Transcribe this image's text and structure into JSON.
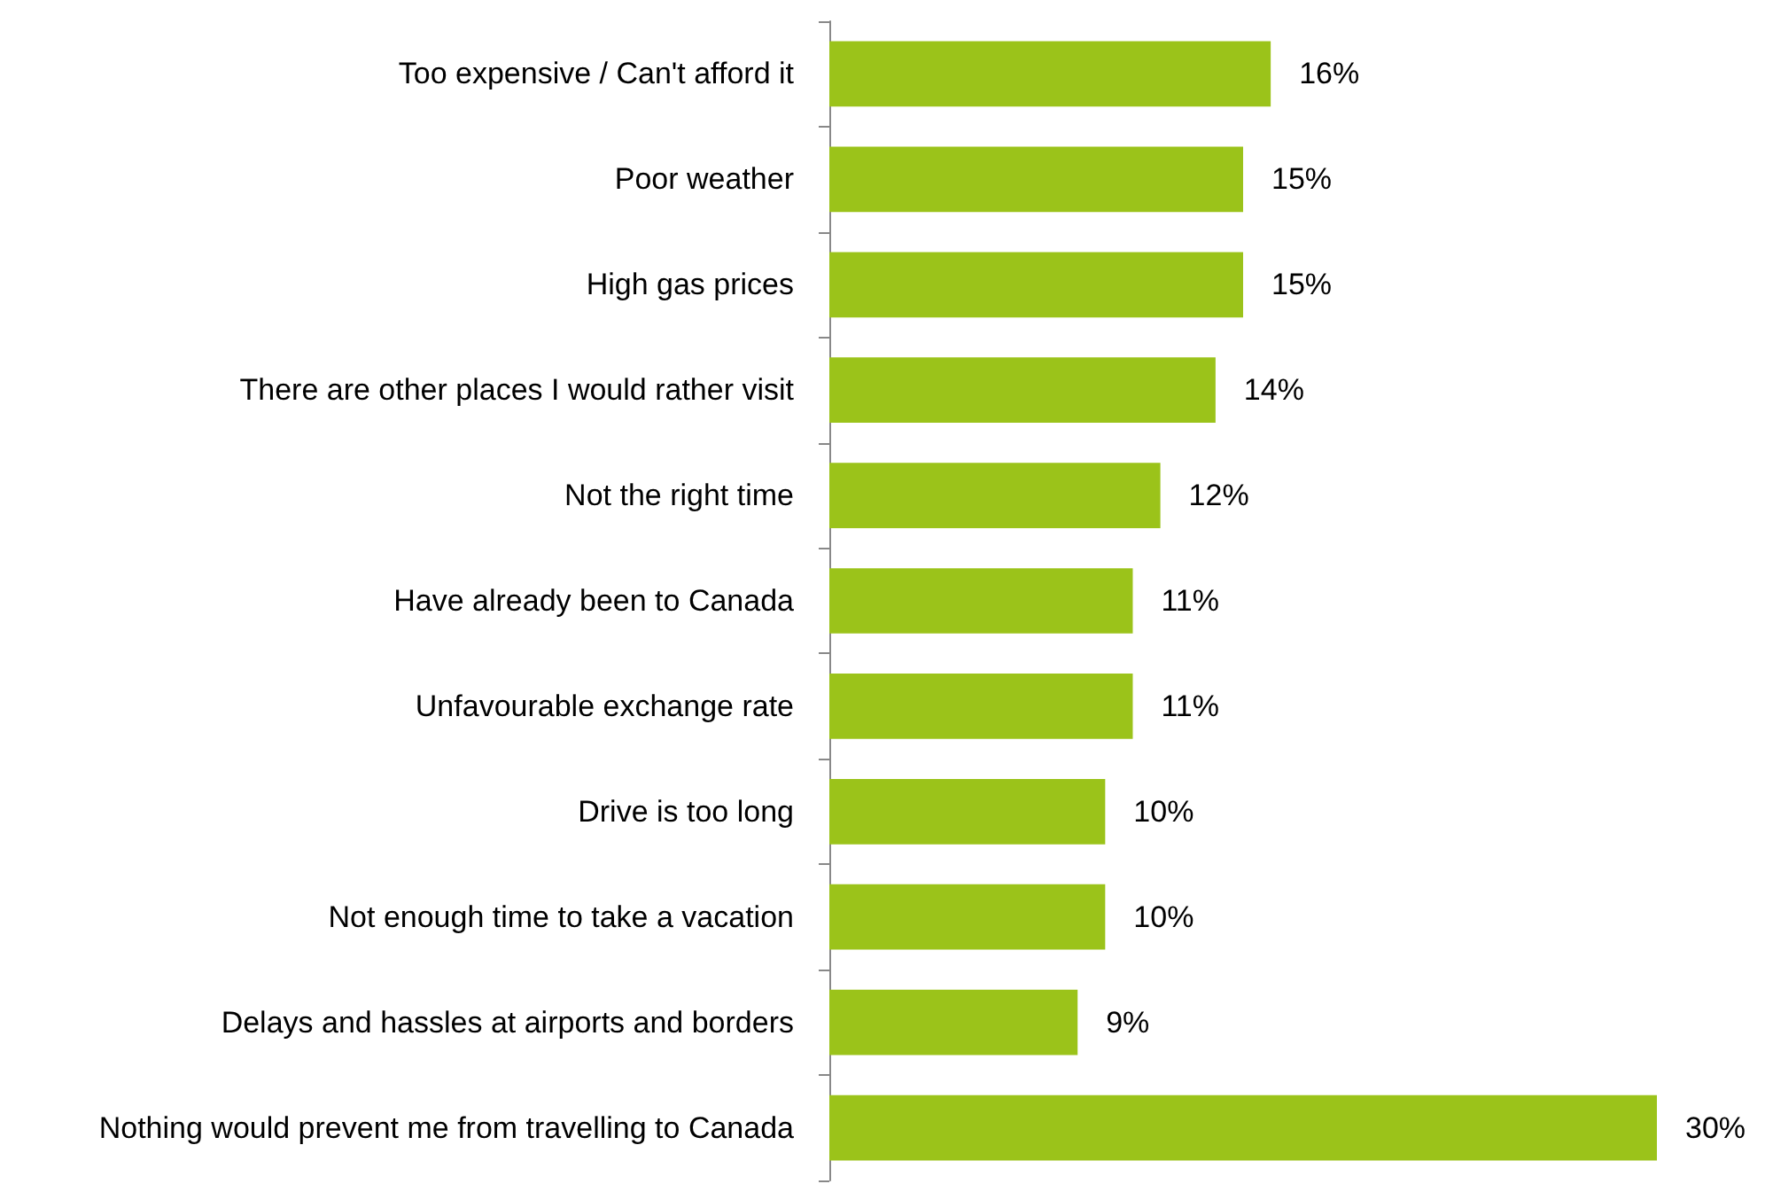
{
  "chart_data": {
    "type": "bar",
    "orientation": "horizontal",
    "categories": [
      "Too expensive / Can't afford it",
      "Poor weather",
      "High gas prices",
      "There are other places I would rather visit",
      "Not the right time",
      "Have already been to Canada",
      "Unfavourable exchange rate",
      "Drive is too long",
      "Not enough time to take a vacation",
      "Delays and hassles at airports and borders",
      "Nothing would prevent me from travelling to Canada"
    ],
    "values": [
      16,
      15,
      15,
      14,
      12,
      11,
      11,
      10,
      10,
      9,
      30
    ],
    "value_labels": [
      "16%",
      "15%",
      "15%",
      "14%",
      "12%",
      "11%",
      "11%",
      "10%",
      "10%",
      "9%",
      "30%"
    ],
    "color": "#9bc31a"
  }
}
